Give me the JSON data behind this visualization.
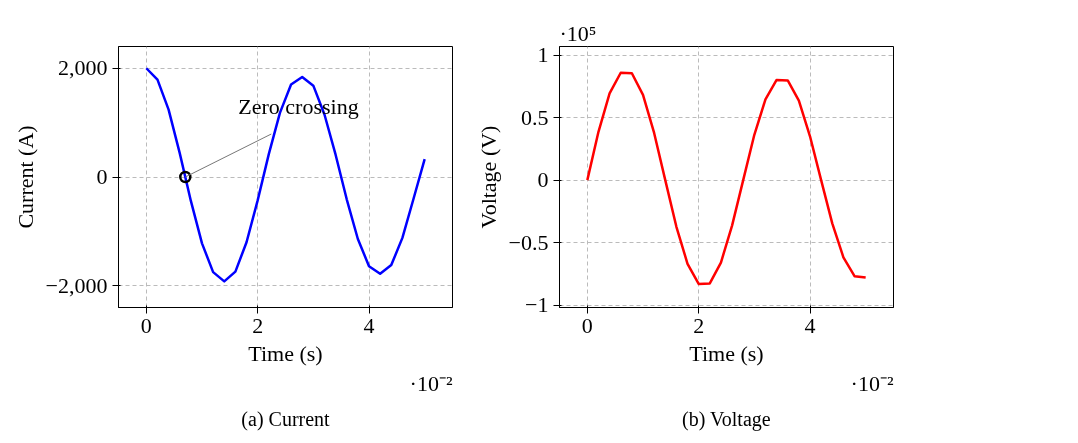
{
  "chart_data": [
    {
      "type": "line",
      "title": "(a) Current",
      "xlabel": "Time (s)",
      "ylabel": "Current (A)",
      "x": [
        0,
        0.2,
        0.4,
        0.6,
        0.8,
        1.0,
        1.2,
        1.4,
        1.6,
        1.8,
        2.0,
        2.2,
        2.4,
        2.6,
        2.8,
        3.0,
        3.2,
        3.4,
        3.6,
        3.8,
        4.0,
        4.2,
        4.4,
        4.6,
        4.8,
        5.0
      ],
      "series": [
        {
          "color": "#0000ff",
          "values": [
            2000,
            1790,
            1240,
            440,
            -440,
            -1220,
            -1750,
            -1920,
            -1740,
            -1200,
            -430,
            420,
            1180,
            1700,
            1840,
            1680,
            1150,
            410,
            -410,
            -1140,
            -1640,
            -1780,
            -1620,
            -1120,
            -400,
            330
          ]
        },
        {
          "type": "scatter",
          "color": "#000000",
          "marker": "circle",
          "x": [
            0.7
          ],
          "values": [
            0
          ]
        }
      ],
      "xlim": [
        -0.5,
        5.5
      ],
      "xticks": [
        0,
        2,
        4
      ],
      "ylim": [
        -2400,
        2400
      ],
      "yticks": [
        {
          "value": -2000,
          "label": "−2,000"
        },
        {
          "value": 0,
          "label": "0"
        },
        {
          "value": 2000,
          "label": "2,000"
        }
      ],
      "annotations": [
        "·10⁻²",
        {
          "text": "Zero crossing",
          "x": 0.7,
          "y": 0
        }
      ],
      "grid": true,
      "marker": "none",
      "line_style": "solid"
    },
    {
      "type": "line",
      "title": "(b) Voltage",
      "xlabel": "Time (s)",
      "ylabel": "Voltage (V)",
      "x": [
        0,
        0.2,
        0.4,
        0.6,
        0.8,
        1.0,
        1.2,
        1.4,
        1.6,
        1.8,
        2.0,
        2.2,
        2.4,
        2.6,
        2.8,
        3.0,
        3.2,
        3.4,
        3.6,
        3.8,
        4.0,
        4.2,
        4.4,
        4.6,
        4.8,
        5.0
      ],
      "series": [
        {
          "color": "#ff0000",
          "values": [
            0,
            0.387,
            0.694,
            0.86,
            0.856,
            0.683,
            0.378,
            0,
            -0.374,
            -0.67,
            -0.831,
            -0.827,
            -0.66,
            -0.364,
            0,
            0.363,
            0.647,
            0.802,
            0.798,
            0.637,
            0.351,
            0,
            -0.346,
            -0.618,
            -0.769,
            -0.78
          ]
        }
      ],
      "xlim": [
        -0.5,
        5.5
      ],
      "xticks": [
        0,
        2,
        4
      ],
      "ylim": [
        -1.02,
        1.07
      ],
      "yticks": [
        {
          "value": -1,
          "label": "−1"
        },
        {
          "value": -0.5,
          "label": "−0.5"
        },
        0,
        0.5,
        1
      ],
      "annotations": [
        "·10⁻²",
        "·10⁵"
      ],
      "grid": true,
      "marker": "none",
      "line_style": "solid"
    }
  ]
}
